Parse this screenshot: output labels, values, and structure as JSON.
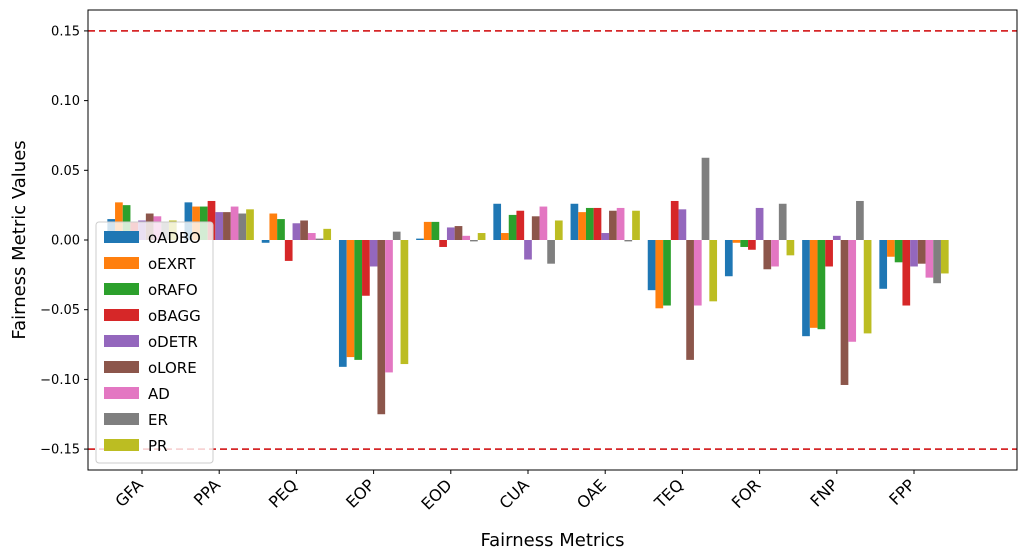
{
  "chart_data": {
    "type": "bar",
    "title": "",
    "xlabel": "Fairness Metrics",
    "ylabel": "Fairness Metric Values",
    "categories": [
      "GFA",
      "PPA",
      "PEQ",
      "EOP",
      "EOD",
      "CUA",
      "OAE",
      "TEQ",
      "FOR",
      "FNP",
      "FPP"
    ],
    "ylim": [
      -0.165,
      0.165
    ],
    "yticks": [
      -0.15,
      -0.1,
      -0.05,
      0.0,
      0.05,
      0.1,
      0.15
    ],
    "ytick_labels": [
      "−0.15",
      "−0.10",
      "−0.05",
      "0.00",
      "0.05",
      "0.10",
      "0.15"
    ],
    "reference_lines": [
      0.15,
      -0.15
    ],
    "reference_line_color": "#d62728",
    "legend_position": "lower-left",
    "grid": false,
    "series": [
      {
        "name": "oADBO",
        "color": "#1f77b4",
        "values": [
          0.015,
          0.027,
          -0.002,
          -0.091,
          0.001,
          0.026,
          0.026,
          -0.036,
          -0.026,
          -0.069,
          -0.035
        ]
      },
      {
        "name": "oEXRT",
        "color": "#ff7f0e",
        "values": [
          0.027,
          0.024,
          0.019,
          -0.084,
          0.013,
          0.005,
          0.02,
          -0.049,
          -0.002,
          -0.063,
          -0.012
        ]
      },
      {
        "name": "oRAFO",
        "color": "#2ca02c",
        "values": [
          0.025,
          0.024,
          0.015,
          -0.086,
          0.013,
          0.018,
          0.023,
          -0.047,
          -0.005,
          -0.064,
          -0.016
        ]
      },
      {
        "name": "oBAGG",
        "color": "#d62728",
        "values": [
          0.013,
          0.028,
          -0.015,
          -0.04,
          -0.005,
          0.021,
          0.023,
          0.028,
          -0.007,
          -0.019,
          -0.047
        ]
      },
      {
        "name": "oDETR",
        "color": "#9467bd",
        "values": [
          0.014,
          0.02,
          0.012,
          -0.019,
          0.009,
          -0.014,
          0.005,
          0.022,
          0.023,
          0.003,
          -0.019
        ]
      },
      {
        "name": "oLORE",
        "color": "#8c564b",
        "values": [
          0.019,
          0.02,
          0.014,
          -0.125,
          0.01,
          0.017,
          0.021,
          -0.086,
          -0.021,
          -0.104,
          -0.017
        ]
      },
      {
        "name": "AD",
        "color": "#e377c2",
        "values": [
          0.017,
          0.024,
          0.005,
          -0.095,
          0.003,
          0.024,
          0.023,
          -0.047,
          -0.019,
          -0.073,
          -0.027
        ]
      },
      {
        "name": "ER",
        "color": "#7f7f7f",
        "values": [
          0.013,
          0.019,
          0.001,
          0.006,
          -0.001,
          -0.017,
          -0.001,
          0.059,
          0.026,
          0.028,
          -0.031
        ]
      },
      {
        "name": "PR",
        "color": "#bcbd22",
        "values": [
          0.014,
          0.022,
          0.008,
          -0.089,
          0.005,
          0.014,
          0.021,
          -0.044,
          -0.011,
          -0.067,
          -0.024
        ]
      }
    ]
  }
}
